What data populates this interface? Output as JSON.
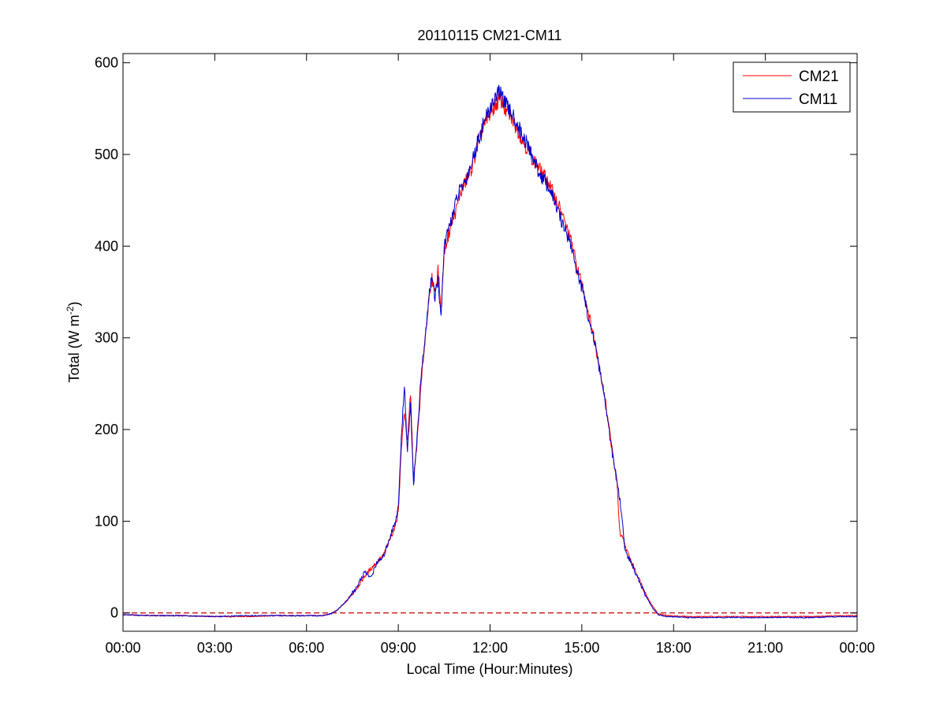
{
  "chart_data": {
    "type": "line",
    "title": "20110115 CM21-CM11",
    "xlabel": "Local Time (Hour:Minutes)",
    "ylabel": "Total (W m",
    "ylabel_superscript": "-2",
    "ylabel_suffix": ")",
    "x_unit": "hours",
    "xlim": [
      0,
      24
    ],
    "ylim": [
      -20,
      610
    ],
    "x_ticks": [
      {
        "value": 0,
        "label": "00:00"
      },
      {
        "value": 3,
        "label": "03:00"
      },
      {
        "value": 6,
        "label": "06:00"
      },
      {
        "value": 9,
        "label": "09:00"
      },
      {
        "value": 12,
        "label": "12:00"
      },
      {
        "value": 15,
        "label": "15:00"
      },
      {
        "value": 18,
        "label": "18:00"
      },
      {
        "value": 21,
        "label": "21:00"
      },
      {
        "value": 24,
        "label": "00:00"
      }
    ],
    "y_ticks": [
      {
        "value": 0,
        "label": "0"
      },
      {
        "value": 100,
        "label": "100"
      },
      {
        "value": 200,
        "label": "200"
      },
      {
        "value": 300,
        "label": "300"
      },
      {
        "value": 400,
        "label": "400"
      },
      {
        "value": 500,
        "label": "500"
      },
      {
        "value": 600,
        "label": "600"
      }
    ],
    "grid": false,
    "legend_position": "top-right",
    "reference_line": {
      "y": 0,
      "style": "dashed",
      "color": "#c00000"
    },
    "series": [
      {
        "name": "CM21",
        "color": "#ff0000",
        "points": [
          [
            0,
            -2
          ],
          [
            1,
            -3
          ],
          [
            2,
            -3
          ],
          [
            3,
            -4
          ],
          [
            4,
            -4
          ],
          [
            5,
            -3
          ],
          [
            6,
            -3
          ],
          [
            6.5,
            -3
          ],
          [
            6.8,
            -1
          ],
          [
            7.0,
            3
          ],
          [
            7.3,
            12
          ],
          [
            7.6,
            25
          ],
          [
            7.9,
            40
          ],
          [
            8.2,
            52
          ],
          [
            8.5,
            62
          ],
          [
            8.7,
            78
          ],
          [
            8.9,
            95
          ],
          [
            9.0,
            110
          ],
          [
            9.1,
            180
          ],
          [
            9.2,
            220
          ],
          [
            9.3,
            185
          ],
          [
            9.4,
            240
          ],
          [
            9.5,
            145
          ],
          [
            9.6,
            180
          ],
          [
            9.75,
            250
          ],
          [
            9.9,
            310
          ],
          [
            10.0,
            340
          ],
          [
            10.1,
            365
          ],
          [
            10.2,
            350
          ],
          [
            10.3,
            375
          ],
          [
            10.4,
            330
          ],
          [
            10.5,
            395
          ],
          [
            10.7,
            420
          ],
          [
            10.9,
            440
          ],
          [
            11.0,
            455
          ],
          [
            11.2,
            470
          ],
          [
            11.4,
            485
          ],
          [
            11.6,
            510
          ],
          [
            11.8,
            530
          ],
          [
            12.0,
            545
          ],
          [
            12.2,
            555
          ],
          [
            12.35,
            560
          ],
          [
            12.5,
            548
          ],
          [
            12.7,
            540
          ],
          [
            13.0,
            520
          ],
          [
            13.3,
            500
          ],
          [
            13.6,
            485
          ],
          [
            13.9,
            470
          ],
          [
            14.1,
            455
          ],
          [
            14.3,
            440
          ],
          [
            14.5,
            420
          ],
          [
            14.7,
            400
          ],
          [
            14.85,
            375
          ],
          [
            15.0,
            360
          ],
          [
            15.2,
            330
          ],
          [
            15.4,
            300
          ],
          [
            15.6,
            265
          ],
          [
            15.8,
            225
          ],
          [
            16.0,
            175
          ],
          [
            16.15,
            140
          ],
          [
            16.25,
            85
          ],
          [
            16.35,
            80
          ],
          [
            16.5,
            65
          ],
          [
            16.7,
            50
          ],
          [
            16.9,
            35
          ],
          [
            17.1,
            20
          ],
          [
            17.3,
            8
          ],
          [
            17.5,
            -1
          ],
          [
            17.8,
            -3
          ],
          [
            18.5,
            -4
          ],
          [
            19.5,
            -4
          ],
          [
            20.5,
            -4
          ],
          [
            21.5,
            -4
          ],
          [
            22.5,
            -4
          ],
          [
            23.5,
            -3
          ],
          [
            24,
            -3
          ]
        ]
      },
      {
        "name": "CM11",
        "color": "#0000cc",
        "points": [
          [
            0,
            -2
          ],
          [
            1,
            -3
          ],
          [
            2,
            -3
          ],
          [
            3,
            -4
          ],
          [
            4,
            -3
          ],
          [
            5,
            -3
          ],
          [
            6,
            -3
          ],
          [
            6.5,
            -3
          ],
          [
            6.8,
            -1
          ],
          [
            7.0,
            3
          ],
          [
            7.3,
            13
          ],
          [
            7.6,
            26
          ],
          [
            7.9,
            45
          ],
          [
            8.1,
            38
          ],
          [
            8.3,
            55
          ],
          [
            8.5,
            60
          ],
          [
            8.7,
            80
          ],
          [
            8.9,
            100
          ],
          [
            9.0,
            115
          ],
          [
            9.1,
            190
          ],
          [
            9.2,
            250
          ],
          [
            9.3,
            175
          ],
          [
            9.4,
            230
          ],
          [
            9.5,
            140
          ],
          [
            9.6,
            185
          ],
          [
            9.75,
            260
          ],
          [
            9.9,
            305
          ],
          [
            10.0,
            345
          ],
          [
            10.1,
            370
          ],
          [
            10.2,
            340
          ],
          [
            10.3,
            365
          ],
          [
            10.4,
            320
          ],
          [
            10.5,
            400
          ],
          [
            10.7,
            425
          ],
          [
            10.9,
            450
          ],
          [
            11.0,
            460
          ],
          [
            11.2,
            472
          ],
          [
            11.4,
            490
          ],
          [
            11.6,
            515
          ],
          [
            11.8,
            535
          ],
          [
            12.0,
            550
          ],
          [
            12.2,
            565
          ],
          [
            12.35,
            568
          ],
          [
            12.5,
            555
          ],
          [
            12.7,
            545
          ],
          [
            13.0,
            525
          ],
          [
            13.3,
            505
          ],
          [
            13.6,
            480
          ],
          [
            13.9,
            465
          ],
          [
            14.1,
            450
          ],
          [
            14.3,
            430
          ],
          [
            14.5,
            415
          ],
          [
            14.7,
            395
          ],
          [
            14.85,
            370
          ],
          [
            15.0,
            355
          ],
          [
            15.2,
            325
          ],
          [
            15.4,
            298
          ],
          [
            15.6,
            262
          ],
          [
            15.8,
            222
          ],
          [
            16.0,
            172
          ],
          [
            16.15,
            145
          ],
          [
            16.3,
            110
          ],
          [
            16.4,
            70
          ],
          [
            16.5,
            62
          ],
          [
            16.7,
            48
          ],
          [
            16.9,
            33
          ],
          [
            17.1,
            18
          ],
          [
            17.3,
            6
          ],
          [
            17.5,
            -2
          ],
          [
            17.8,
            -4
          ],
          [
            18.5,
            -5
          ],
          [
            19.5,
            -5
          ],
          [
            20.5,
            -5
          ],
          [
            21.5,
            -5
          ],
          [
            22.5,
            -5
          ],
          [
            23.5,
            -4
          ],
          [
            24,
            -4
          ]
        ]
      }
    ]
  }
}
